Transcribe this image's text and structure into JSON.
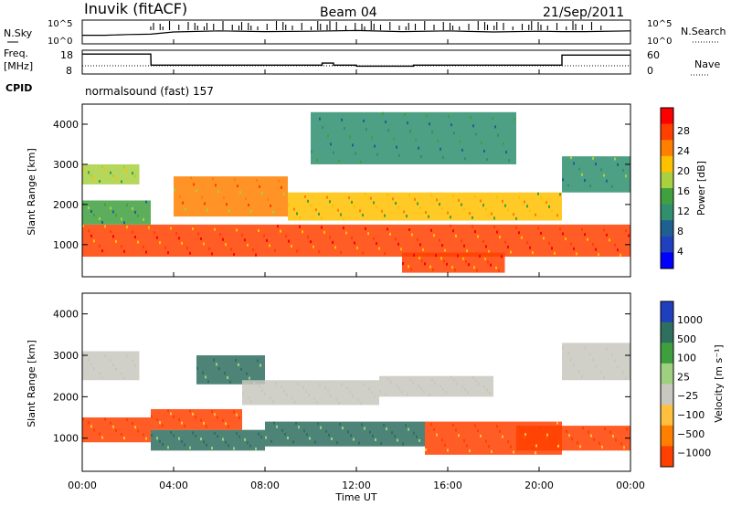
{
  "header": {
    "station": "Inuvik (fitACF)",
    "beam": "Beam 04",
    "date": "21/Sep/2011"
  },
  "left_labels": {
    "nsky": "N.Sky",
    "freq_line1": "Freq.",
    "freq_line2": "[MHz]",
    "cpid": "CPID"
  },
  "right_labels": {
    "nsearch": "N.Search",
    "nave": "Nave"
  },
  "cpid_text": "normalsound (fast) 157",
  "xaxis": {
    "label": "Time UT",
    "ticks": [
      "00:00",
      "04:00",
      "08:00",
      "12:00",
      "16:00",
      "20:00",
      "00:00"
    ]
  },
  "power_colorbar": {
    "label": "Power [dB]",
    "ticks": [
      "28",
      "24",
      "20",
      "16",
      "12",
      "8",
      "4"
    ],
    "colors": [
      "#ff0000",
      "#ff4000",
      "#ff8000",
      "#ffc000",
      "#a8d040",
      "#40a040",
      "#2f8f6f",
      "#206090",
      "#2040c0",
      "#0000ff"
    ]
  },
  "velocity_colorbar": {
    "label": "Velocity [m s⁻¹]",
    "ticks": [
      "1000",
      "500",
      "100",
      "25",
      "−25",
      "−100",
      "−500",
      "−1000"
    ],
    "colors": [
      "#1f3fbf",
      "#2f6f5f",
      "#3f9f3f",
      "#9fd07f",
      "#c8c8c0",
      "#ffc040",
      "#ff8000",
      "#ff4000",
      "#ff0000"
    ]
  },
  "chart_data": [
    {
      "type": "line",
      "title": "N.Sky / N.Search",
      "ylabel_left": "N.Sky",
      "ylabel_right": "N.Search",
      "yticks_left": [
        "10^5",
        "10^0"
      ],
      "yticks_right": [
        "10^5",
        "10^0"
      ],
      "x": [
        0,
        1,
        2,
        3,
        4,
        6,
        8,
        10,
        12,
        14,
        16,
        18,
        20,
        21,
        22,
        24
      ],
      "series": [
        {
          "name": "N.Sky",
          "values": [
            1.6,
            1.6,
            1.8,
            1.9,
            2.5,
            2.8,
            2.6,
            2.7,
            2.9,
            2.6,
            2.8,
            2.5,
            2.7,
            2.6,
            2.6,
            2.8
          ]
        }
      ]
    },
    {
      "type": "line",
      "title": "Freq. [MHz] / Nave",
      "ylabel_left": "Freq. [MHz]",
      "ylabel_right": "Nave",
      "yticks_left": [
        "18",
        "8"
      ],
      "yticks_right": [
        "60",
        "0"
      ],
      "x": [
        0,
        3,
        3.01,
        10.5,
        10.5,
        11.0,
        11.0,
        12.0,
        12.0,
        14.5,
        14.5,
        21.0,
        21.0,
        24
      ],
      "series": [
        {
          "name": "Freq.",
          "values": [
            17,
            17,
            11.5,
            11.5,
            12.5,
            12.5,
            11.5,
            11.5,
            11.0,
            11.0,
            11.5,
            11.5,
            16.5,
            16.5
          ]
        },
        {
          "name": "Nave",
          "values": [
            20,
            20,
            20,
            20,
            20,
            20,
            20,
            20,
            20,
            20,
            20,
            20,
            20,
            20
          ]
        }
      ]
    },
    {
      "type": "heatmap",
      "title": "Power [dB]",
      "ylabel": "Slant Range [km]",
      "xlabel": "",
      "xlim": [
        0,
        24
      ],
      "ylim": [
        200,
        4500
      ],
      "yticks": [
        1000,
        2000,
        3000,
        4000
      ],
      "bands": [
        {
          "x": [
            0,
            24
          ],
          "y": [
            700,
            1500
          ],
          "value": 26
        },
        {
          "x": [
            0,
            3
          ],
          "y": [
            1500,
            2100
          ],
          "value": 14
        },
        {
          "x": [
            0,
            2.5
          ],
          "y": [
            2500,
            3000
          ],
          "value": 18
        },
        {
          "x": [
            4,
            9
          ],
          "y": [
            1700,
            2700
          ],
          "value": 23
        },
        {
          "x": [
            9,
            21
          ],
          "y": [
            1600,
            2300
          ],
          "value": 20
        },
        {
          "x": [
            14,
            18.5
          ],
          "y": [
            300,
            800
          ],
          "value": 26
        },
        {
          "x": [
            21,
            24
          ],
          "y": [
            2300,
            3200
          ],
          "value": 13
        },
        {
          "x": [
            10,
            19
          ],
          "y": [
            3000,
            4300
          ],
          "value": 12
        }
      ]
    },
    {
      "type": "heatmap",
      "title": "Velocity [m s⁻¹]",
      "ylabel": "Slant Range [km]",
      "xlabel": "Time UT",
      "xlim": [
        0,
        24
      ],
      "ylim": [
        200,
        4500
      ],
      "yticks": [
        1000,
        2000,
        3000,
        4000
      ],
      "bands": [
        {
          "x": [
            0,
            3
          ],
          "y": [
            900,
            1500
          ],
          "value": -300
        },
        {
          "x": [
            0,
            2.5
          ],
          "y": [
            2400,
            3100
          ],
          "value": 0
        },
        {
          "x": [
            3,
            8
          ],
          "y": [
            700,
            1200
          ],
          "value": 300
        },
        {
          "x": [
            3,
            7
          ],
          "y": [
            1200,
            1700
          ],
          "value": -300
        },
        {
          "x": [
            5,
            8
          ],
          "y": [
            2300,
            3000
          ],
          "value": 300
        },
        {
          "x": [
            7,
            13
          ],
          "y": [
            1800,
            2400
          ],
          "value": 0
        },
        {
          "x": [
            8,
            15
          ],
          "y": [
            800,
            1400
          ],
          "value": 300
        },
        {
          "x": [
            13,
            18
          ],
          "y": [
            2000,
            2500
          ],
          "value": 0
        },
        {
          "x": [
            15,
            21
          ],
          "y": [
            600,
            1400
          ],
          "value": -300
        },
        {
          "x": [
            19,
            24
          ],
          "y": [
            700,
            1300
          ],
          "value": -300
        },
        {
          "x": [
            21,
            24
          ],
          "y": [
            2400,
            3300
          ],
          "value": 0
        }
      ]
    }
  ]
}
